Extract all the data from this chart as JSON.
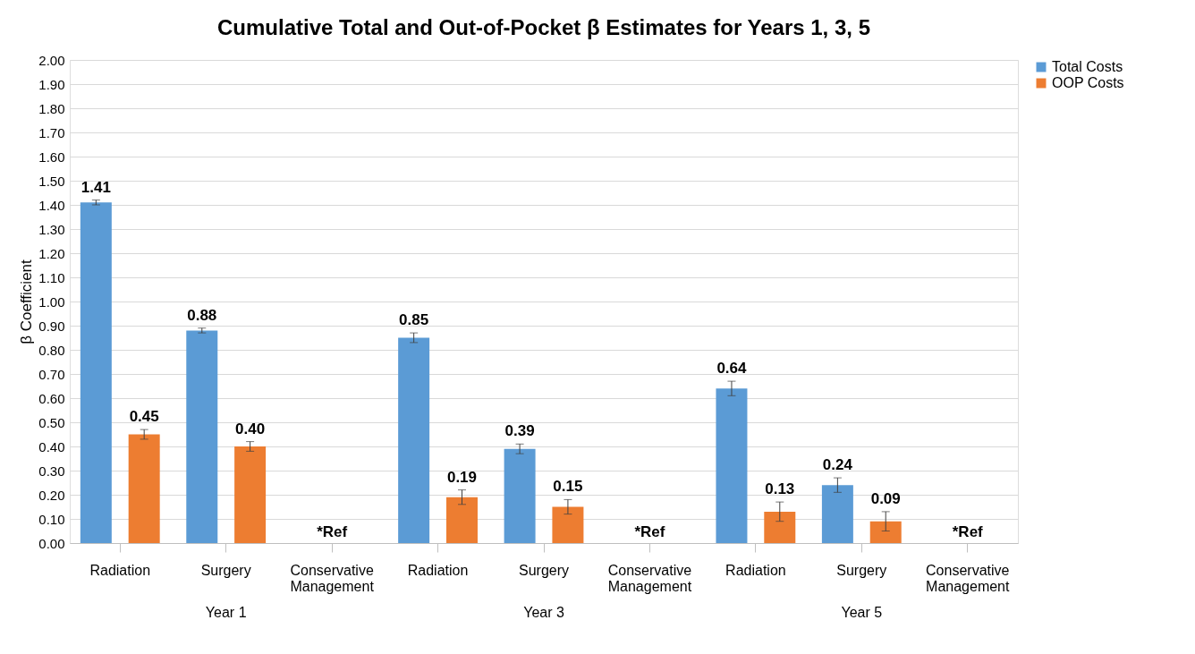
{
  "chart_data": {
    "type": "bar",
    "title": "Cumulative Total and Out-of-Pocket β Estimates for Years 1, 3, 5",
    "ylabel": "β Coefficient",
    "categories": [
      "Radiation",
      "Surgery",
      "Conservative Management",
      "Radiation",
      "Surgery",
      "Conservative Management",
      "Radiation",
      "Surgery",
      "Conservative Management"
    ],
    "series": [
      {
        "name": "Total Costs",
        "color": "#5b9bd5",
        "values": [
          1.41,
          0.88,
          null,
          0.85,
          0.39,
          null,
          0.64,
          0.24,
          null
        ],
        "errors": [
          0.01,
          0.01,
          null,
          0.02,
          0.02,
          null,
          0.03,
          0.03,
          null
        ],
        "value_labels": [
          "1.41",
          "0.88",
          null,
          "0.85",
          "0.39",
          null,
          "0.64",
          "0.24",
          null
        ]
      },
      {
        "name": "OOP Costs",
        "color": "#ed7d31",
        "values": [
          0.45,
          0.4,
          null,
          0.19,
          0.15,
          null,
          0.13,
          0.09,
          null
        ],
        "errors": [
          0.02,
          0.02,
          null,
          0.03,
          0.03,
          null,
          0.04,
          0.04,
          null
        ],
        "value_labels": [
          "0.45",
          "0.40",
          null,
          "0.19",
          "0.15",
          null,
          "0.13",
          "0.09",
          null
        ]
      }
    ],
    "ylim": [
      0,
      2
    ],
    "yticks": [
      {
        "value": 0,
        "label": "0.00"
      },
      {
        "value": 0.1,
        "label": "0.10"
      },
      {
        "value": 0.2,
        "label": "0.20"
      },
      {
        "value": 0.3,
        "label": "0.30"
      },
      {
        "value": 0.4,
        "label": "0.40"
      },
      {
        "value": 0.5,
        "label": "0.50"
      },
      {
        "value": 0.6,
        "label": "0.60"
      },
      {
        "value": 0.7,
        "label": "0.70"
      },
      {
        "value": 0.8,
        "label": "0.80"
      },
      {
        "value": 0.9,
        "label": "0.90"
      },
      {
        "value": 1,
        "label": "1.00"
      },
      {
        "value": 1.1,
        "label": "1.10"
      },
      {
        "value": 1.2,
        "label": "1.20"
      },
      {
        "value": 1.3,
        "label": "1.30"
      },
      {
        "value": 1.4,
        "label": "1.40"
      },
      {
        "value": 1.5,
        "label": "1.50"
      },
      {
        "value": 1.6,
        "label": "1.60"
      },
      {
        "value": 1.7,
        "label": "1.70"
      },
      {
        "value": 1.8,
        "label": "1.80"
      },
      {
        "value": 1.9,
        "label": "1.90"
      },
      {
        "value": 2,
        "label": "2.00"
      }
    ],
    "annotations": [
      "*Ref",
      "*Ref",
      "*Ref",
      "Year 1",
      "Year 3",
      "Year 5"
    ],
    "grid": "y",
    "legend": "right"
  }
}
